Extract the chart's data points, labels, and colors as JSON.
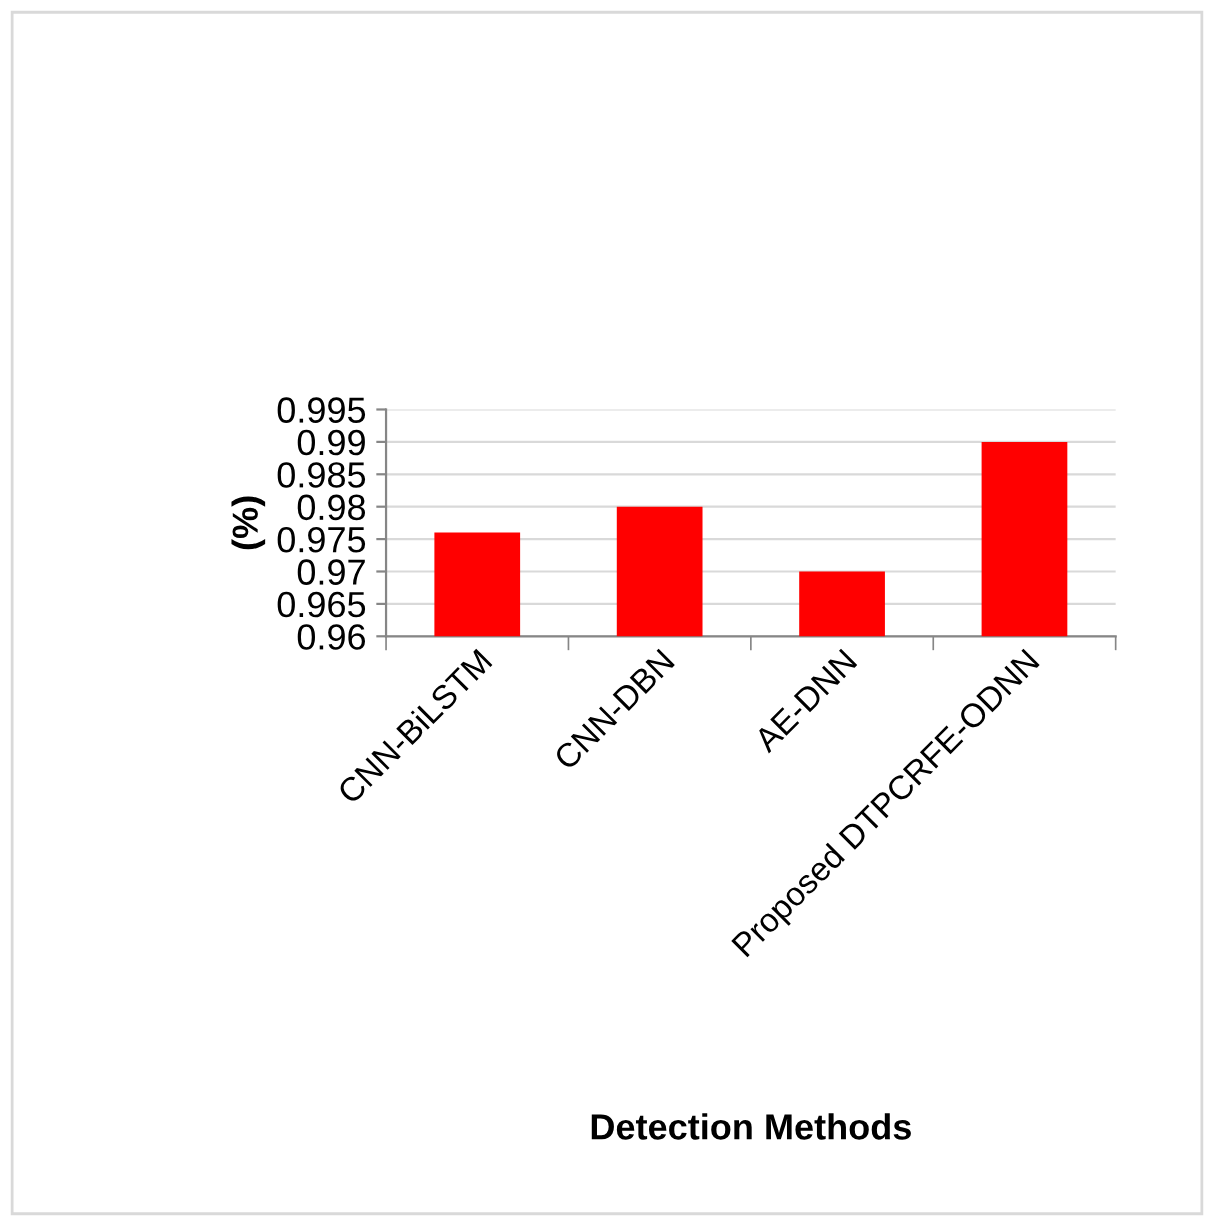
{
  "chart_data": {
    "type": "bar",
    "xlabel": "Detection Methods",
    "ylabel": "(%)",
    "categories": [
      "CNN-BiLSTM",
      "CNN-DBN",
      "AE-DNN",
      "Proposed DTPCRFE-ODNN"
    ],
    "values": [
      0.976,
      0.98,
      0.97,
      0.99
    ],
    "color": "#ff0000",
    "ylim": [
      0.96,
      0.995
    ],
    "yticks": [
      0.96,
      0.965,
      0.97,
      0.975,
      0.98,
      0.985,
      0.99,
      0.995
    ],
    "grid": "y"
  }
}
